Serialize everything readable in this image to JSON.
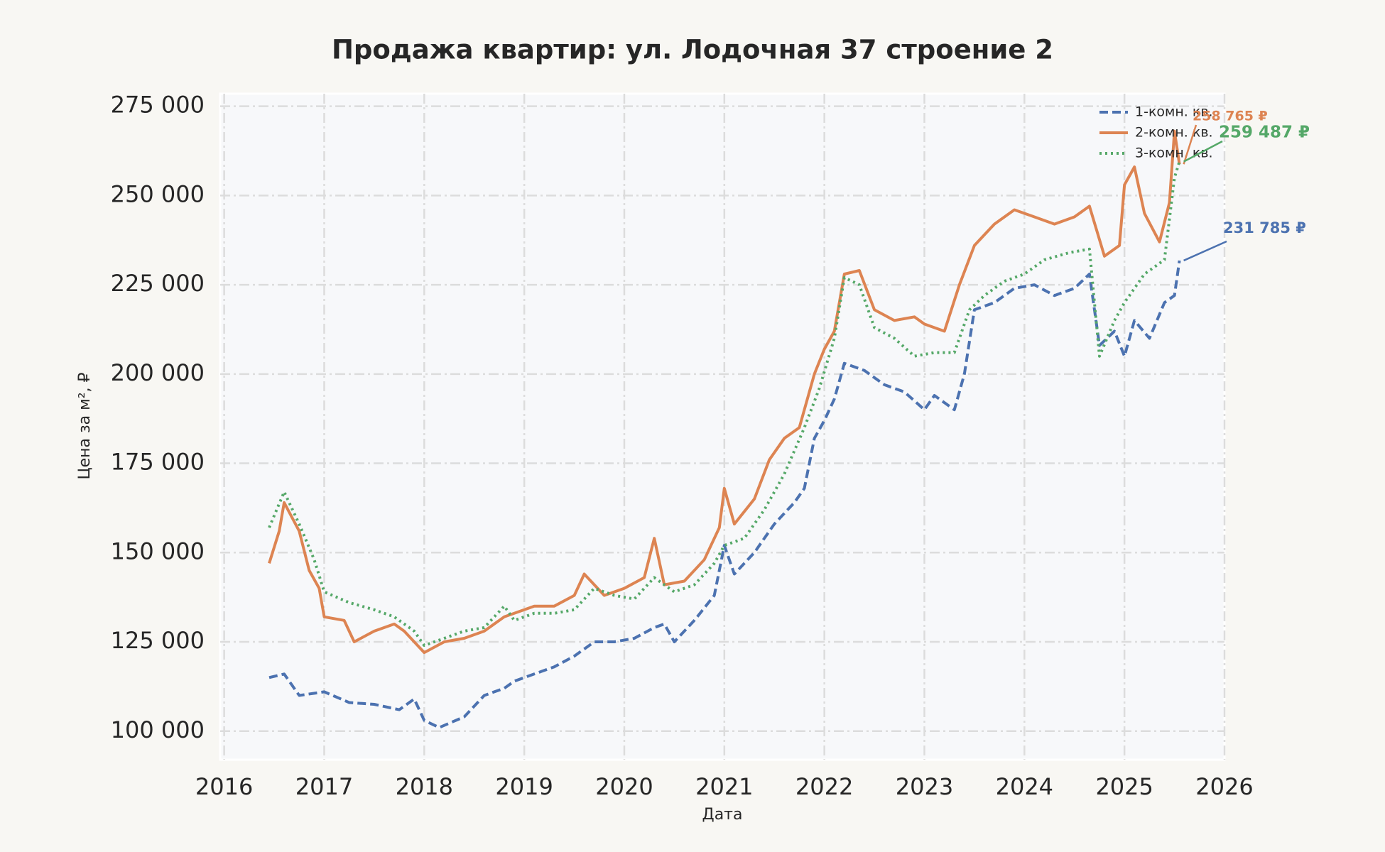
{
  "chart_data": {
    "type": "line",
    "title": "Продажа квартир: ул. Лодочная 37 строение 2",
    "x_label": "Дата",
    "y_label": "Цена за м², ₽",
    "xlim": [
      2015.96,
      2026
    ],
    "xticks": [
      2016,
      2017,
      2018,
      2019,
      2020,
      2021,
      2022,
      2023,
      2024,
      2025,
      2026
    ],
    "ylim": [
      92000,
      278500
    ],
    "yticks": [
      {
        "value": 100000,
        "label": "100 000"
      },
      {
        "value": 125000,
        "label": "125 000"
      },
      {
        "value": 150000,
        "label": "150 000"
      },
      {
        "value": 175000,
        "label": "175 000"
      },
      {
        "value": 200000,
        "label": "200 000"
      },
      {
        "value": 225000,
        "label": "225 000"
      },
      {
        "value": 250000,
        "label": "250 000"
      },
      {
        "value": 275000,
        "label": "275 000"
      }
    ],
    "grid": true,
    "legend": "upper right",
    "series": [
      {
        "name": "1-комн. кв.",
        "color": "#4c72b0",
        "dash": "12 6",
        "x": [
          2016.45,
          2016.6,
          2016.75,
          2017.0,
          2017.25,
          2017.5,
          2017.75,
          2017.9,
          2018.0,
          2018.15,
          2018.4,
          2018.6,
          2018.8,
          2018.9,
          2019.1,
          2019.3,
          2019.5,
          2019.7,
          2019.9,
          2020.1,
          2020.3,
          2020.4,
          2020.5,
          2020.7,
          2020.9,
          2021.0,
          2021.1,
          2021.3,
          2021.5,
          2021.7,
          2021.8,
          2021.9,
          2022.0,
          2022.1,
          2022.2,
          2022.4,
          2022.6,
          2022.8,
          2023.0,
          2023.1,
          2023.3,
          2023.4,
          2023.5,
          2023.7,
          2023.9,
          2024.1,
          2024.3,
          2024.5,
          2024.65,
          2024.75,
          2024.9,
          2025.0,
          2025.1,
          2025.25,
          2025.4,
          2025.5,
          2025.55
        ],
        "values": [
          115000,
          116000,
          110000,
          111000,
          108000,
          107500,
          106000,
          109000,
          103000,
          101000,
          104000,
          110000,
          112000,
          114000,
          116000,
          118000,
          121000,
          125000,
          125000,
          126000,
          129000,
          130000,
          125000,
          131000,
          138000,
          152000,
          144000,
          150000,
          158000,
          164000,
          168000,
          182000,
          187000,
          193000,
          203000,
          201000,
          197000,
          195000,
          190000,
          194000,
          190000,
          200000,
          218000,
          220000,
          224000,
          225000,
          222000,
          224000,
          228000,
          208000,
          212000,
          205000,
          215000,
          210000,
          220000,
          222000,
          231785
        ]
      },
      {
        "name": "2-комн. кв.",
        "color": "#dd8452",
        "dash": "none",
        "x": [
          2016.45,
          2016.55,
          2016.6,
          2016.75,
          2016.85,
          2016.95,
          2017.0,
          2017.2,
          2017.3,
          2017.5,
          2017.7,
          2017.8,
          2018.0,
          2018.2,
          2018.4,
          2018.6,
          2018.8,
          2018.9,
          2019.1,
          2019.3,
          2019.5,
          2019.6,
          2019.8,
          2020.0,
          2020.2,
          2020.3,
          2020.4,
          2020.6,
          2020.8,
          2020.95,
          2021.0,
          2021.1,
          2021.3,
          2021.45,
          2021.6,
          2021.75,
          2021.9,
          2022.0,
          2022.1,
          2022.2,
          2022.35,
          2022.5,
          2022.7,
          2022.9,
          2023.0,
          2023.2,
          2023.35,
          2023.5,
          2023.7,
          2023.9,
          2024.1,
          2024.3,
          2024.5,
          2024.65,
          2024.8,
          2024.95,
          2025.0,
          2025.1,
          2025.2,
          2025.35,
          2025.45,
          2025.5,
          2025.55
        ],
        "values": [
          147000,
          156000,
          164000,
          156000,
          145000,
          140000,
          132000,
          131000,
          125000,
          128000,
          130000,
          128000,
          122000,
          125000,
          126000,
          128000,
          132000,
          133000,
          135000,
          135000,
          138000,
          144000,
          138000,
          140000,
          143000,
          154000,
          141000,
          142000,
          148000,
          157000,
          168000,
          158000,
          165000,
          176000,
          182000,
          185000,
          200000,
          207000,
          212000,
          228000,
          229000,
          218000,
          215000,
          216000,
          214000,
          212000,
          225000,
          236000,
          242000,
          246000,
          244000,
          242000,
          244000,
          247000,
          233000,
          236000,
          253000,
          258000,
          245000,
          237000,
          248000,
          268000,
          258765
        ]
      },
      {
        "name": "3-комн. кв.",
        "color": "#55a868",
        "dash": "3 5",
        "x": [
          2016.45,
          2016.6,
          2016.75,
          2016.9,
          2017.0,
          2017.25,
          2017.5,
          2017.7,
          2017.9,
          2018.0,
          2018.2,
          2018.4,
          2018.6,
          2018.8,
          2018.9,
          2019.1,
          2019.3,
          2019.5,
          2019.7,
          2019.9,
          2020.1,
          2020.3,
          2020.5,
          2020.7,
          2020.9,
          2021.0,
          2021.2,
          2021.4,
          2021.6,
          2021.8,
          2021.95,
          2022.1,
          2022.2,
          2022.35,
          2022.5,
          2022.7,
          2022.9,
          2023.1,
          2023.3,
          2023.45,
          2023.6,
          2023.8,
          2024.0,
          2024.2,
          2024.45,
          2024.65,
          2024.75,
          2024.9,
          2025.0,
          2025.2,
          2025.4,
          2025.5,
          2025.55
        ],
        "values": [
          157000,
          167000,
          158000,
          148000,
          139000,
          136000,
          134000,
          132000,
          128000,
          124000,
          126000,
          128000,
          129000,
          135000,
          131000,
          133000,
          133000,
          134000,
          140000,
          138000,
          137000,
          143000,
          139000,
          141000,
          147000,
          152000,
          154000,
          162000,
          172000,
          185000,
          196000,
          210000,
          227000,
          225000,
          213000,
          210000,
          205000,
          206000,
          206000,
          218000,
          222000,
          226000,
          228000,
          232000,
          234000,
          235000,
          205000,
          215000,
          220000,
          228000,
          232000,
          255000,
          259487
        ]
      }
    ],
    "annotations": [
      {
        "text": "231 785 ₽",
        "value": 231785
      },
      {
        "text": "258 765 ₽",
        "value": 258765
      },
      {
        "text": "259 487 ₽",
        "value": 259487
      }
    ]
  }
}
